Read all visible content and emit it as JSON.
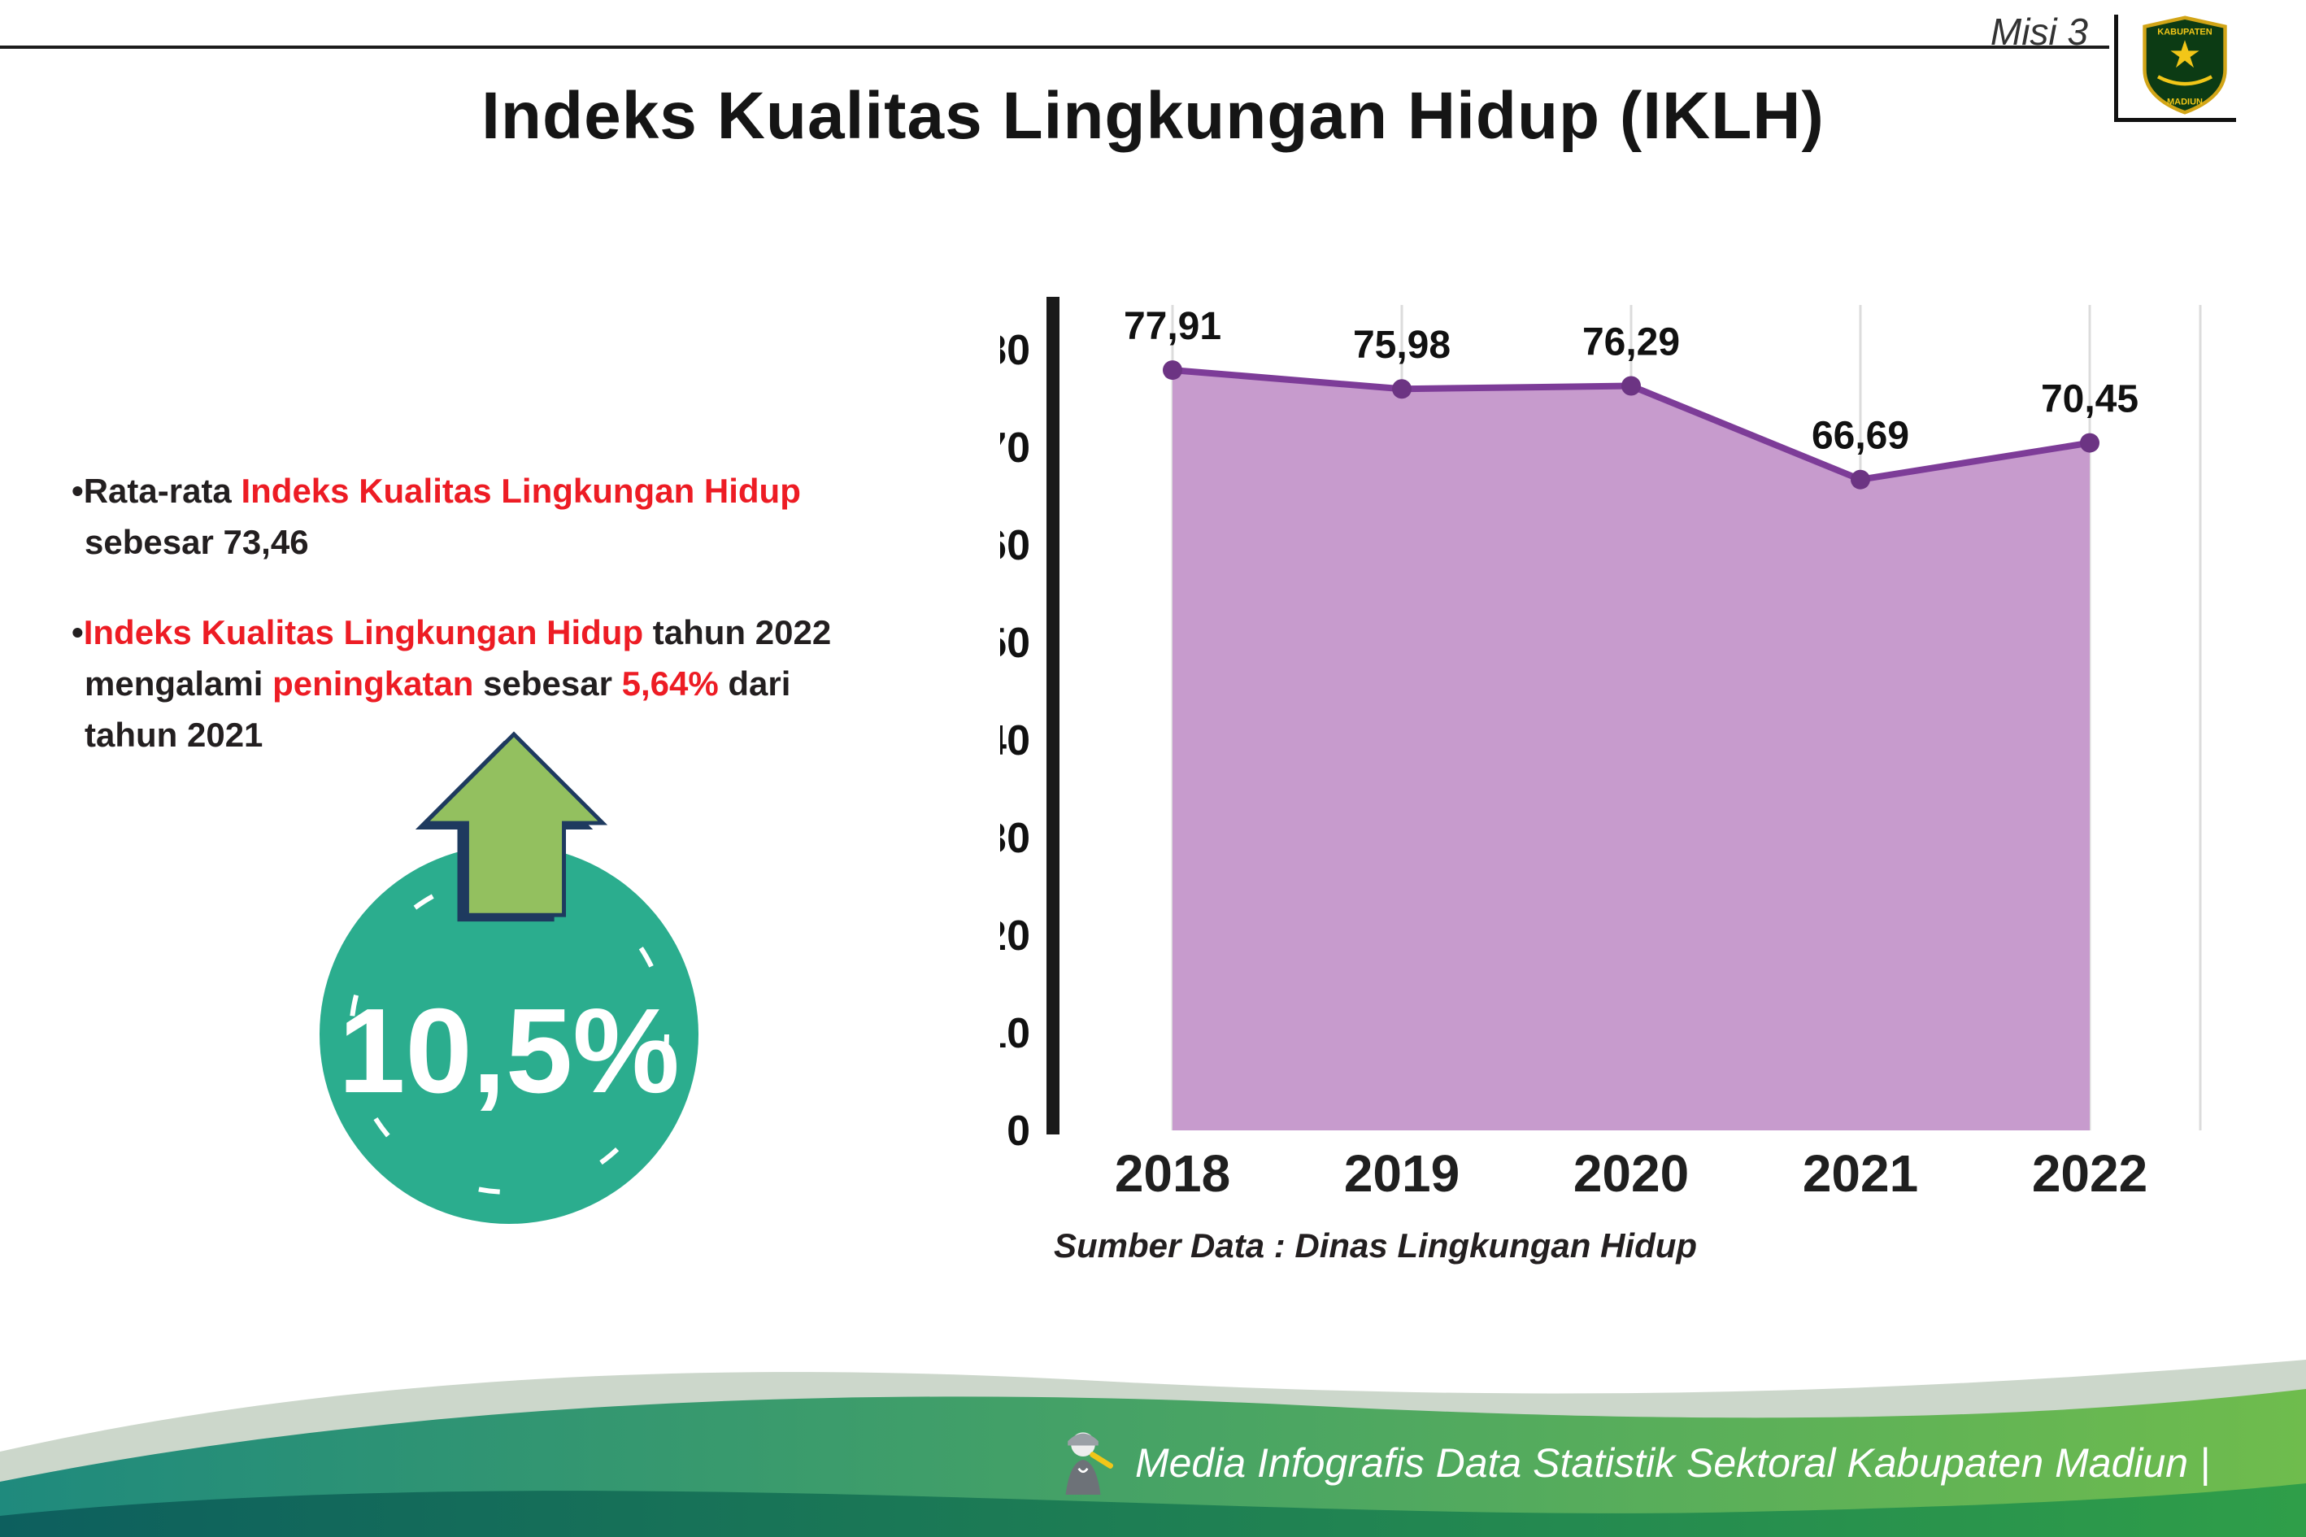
{
  "header": {
    "misi_label": "Misi 3",
    "title": "Indeks Kualitas Lingkungan Hidup (IKLH)"
  },
  "logo": {
    "top_text": "KABUPATEN",
    "bottom_text": "MADIUN"
  },
  "ui": {
    "bullet_char": "•"
  },
  "bullet1": {
    "p1": "Rata-rata ",
    "p2": "Indeks Kualitas Lingkungan Hidup",
    "p3": " sebesar 73,46"
  },
  "bullet2": {
    "p1": "Indeks Kualitas Lingkungan Hidup",
    "p2": " tahun 2022 mengalami ",
    "p3": "peningkatan",
    "p4": " sebesar ",
    "p5": "5,64%",
    "p6": " dari tahun 2021"
  },
  "badge": {
    "value": "10,5%"
  },
  "chart_data": {
    "type": "area",
    "categories": [
      "2018",
      "2019",
      "2020",
      "2021",
      "2022"
    ],
    "values": [
      77.91,
      75.98,
      76.29,
      66.69,
      70.45
    ],
    "value_labels": [
      "77,91",
      "75,98",
      "76,29",
      "66,69",
      "70,45"
    ],
    "title": "",
    "xlabel": "",
    "ylabel": "",
    "ylim": [
      0,
      80
    ],
    "ytick_step": 10,
    "grid": true,
    "legend": "none",
    "area_color": "#C79BCD",
    "line_color": "#7D3C98",
    "dot_color": "#6C3483",
    "source": "Sumber Data : Dinas Lingkungan Hidup"
  },
  "footer": {
    "credit": "Media Infografis Data Statistik Sektoral Kabupaten Madiun |"
  },
  "colors": {
    "accent_red": "#ED1C24",
    "badge_teal": "#2BAD8E",
    "arrow_green": "#93C05F",
    "arrow_outline": "#1E3A5F"
  }
}
